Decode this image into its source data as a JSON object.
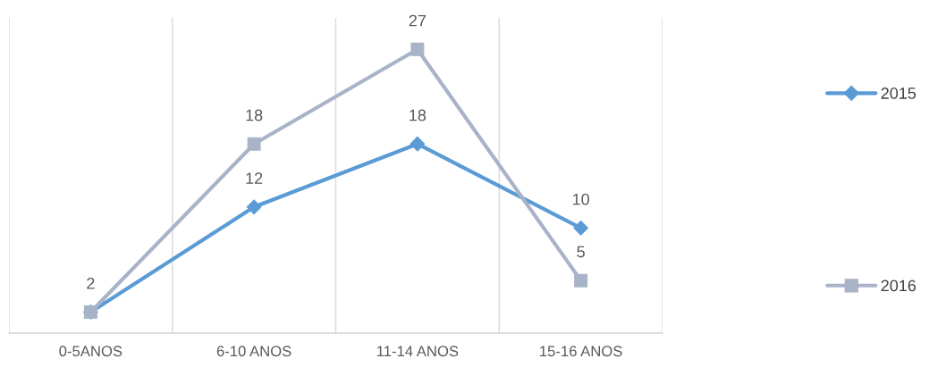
{
  "chart_data": {
    "type": "line",
    "categories": [
      "0-5ANOS",
      "6-10 ANOS",
      "11-14 ANOS",
      "15-16 ANOS"
    ],
    "series": [
      {
        "name": "2015",
        "color": "#5b9bd5",
        "marker": "diamond",
        "values": [
          2,
          12,
          18,
          10
        ],
        "value_labels": [
          null,
          "12",
          "18",
          "10"
        ]
      },
      {
        "name": "2016",
        "color": "#a9b3c8",
        "marker": "square",
        "values": [
          2,
          18,
          27,
          5
        ],
        "value_labels": [
          "2",
          "18",
          "27",
          "5"
        ]
      }
    ],
    "ylim": [
      0,
      30
    ],
    "tick_labels": "x",
    "grid": "x",
    "legend": "right",
    "line_style": "solid"
  }
}
